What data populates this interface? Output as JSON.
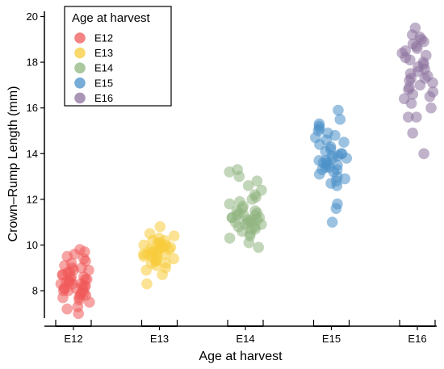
{
  "chart_data": {
    "type": "scatter",
    "xlabel": "Age at harvest",
    "ylabel": "Crown–Rump Length (mm)",
    "categories": [
      "E12",
      "E13",
      "E14",
      "E15",
      "E16"
    ],
    "ylim": [
      6.8,
      20.3
    ],
    "yticks": [
      8,
      10,
      12,
      14,
      16,
      18,
      20
    ],
    "grid": false,
    "jitter": true,
    "legend": {
      "title": "Age at harvest",
      "placement": "top-left",
      "entries": [
        "E12",
        "E13",
        "E14",
        "E15",
        "E16"
      ]
    },
    "colors": {
      "E12": "#f05a5a",
      "E13": "#f7cc3a",
      "E14": "#8fb57f",
      "E15": "#4a90c8",
      "E16": "#8c739e"
    },
    "series": [
      {
        "name": "E12",
        "category": "E12",
        "values": [
          7.0,
          7.2,
          7.3,
          7.5,
          7.6,
          7.7,
          7.7,
          7.8,
          7.8,
          7.9,
          7.9,
          8.0,
          8.0,
          8.0,
          8.1,
          8.1,
          8.1,
          8.2,
          8.2,
          8.2,
          8.3,
          8.3,
          8.3,
          8.4,
          8.4,
          8.4,
          8.5,
          8.5,
          8.5,
          8.6,
          8.6,
          8.7,
          8.7,
          8.8,
          8.8,
          8.9,
          8.9,
          9.0,
          9.0,
          9.1,
          9.2,
          9.3,
          9.4,
          9.5,
          9.6,
          9.7,
          9.8
        ]
      },
      {
        "name": "E13",
        "category": "E13",
        "values": [
          8.3,
          8.7,
          8.9,
          9.0,
          9.1,
          9.2,
          9.2,
          9.3,
          9.3,
          9.4,
          9.4,
          9.5,
          9.5,
          9.5,
          9.6,
          9.6,
          9.6,
          9.7,
          9.7,
          9.7,
          9.8,
          9.8,
          9.8,
          9.9,
          9.9,
          9.9,
          10.0,
          10.0,
          10.0,
          10.1,
          10.1,
          10.2,
          10.2,
          10.3,
          10.4,
          10.5,
          10.8
        ]
      },
      {
        "name": "E14",
        "category": "E14",
        "values": [
          9.9,
          10.1,
          10.3,
          10.4,
          10.5,
          10.6,
          10.7,
          10.7,
          10.8,
          10.8,
          10.9,
          10.9,
          11.0,
          11.0,
          11.0,
          11.1,
          11.1,
          11.1,
          11.2,
          11.2,
          11.2,
          11.3,
          11.3,
          11.3,
          11.4,
          11.4,
          11.5,
          11.5,
          11.6,
          11.7,
          11.8,
          11.9,
          12.0,
          12.1,
          12.2,
          12.4,
          12.6,
          12.8,
          13.0,
          13.2,
          13.3
        ]
      },
      {
        "name": "E15",
        "category": "E15",
        "values": [
          11.0,
          11.6,
          11.8,
          12.6,
          12.7,
          12.8,
          12.9,
          13.0,
          13.1,
          13.2,
          13.3,
          13.3,
          13.4,
          13.4,
          13.5,
          13.5,
          13.6,
          13.6,
          13.7,
          13.7,
          13.8,
          13.8,
          13.9,
          13.9,
          14.0,
          14.0,
          14.1,
          14.2,
          14.3,
          14.4,
          14.5,
          14.6,
          14.7,
          14.8,
          14.9,
          15.0,
          15.1,
          15.2,
          15.3,
          15.5,
          15.9
        ]
      },
      {
        "name": "E16",
        "category": "E16",
        "values": [
          14.0,
          14.9,
          15.6,
          15.6,
          16.0,
          16.2,
          16.4,
          16.5,
          16.6,
          16.7,
          16.8,
          16.9,
          17.0,
          17.1,
          17.2,
          17.3,
          17.3,
          17.4,
          17.5,
          17.6,
          17.7,
          17.8,
          17.9,
          18.0,
          18.1,
          18.2,
          18.3,
          18.4,
          18.5,
          18.6,
          18.7,
          18.8,
          18.9,
          19.0,
          19.1,
          19.2,
          19.5
        ]
      }
    ]
  }
}
